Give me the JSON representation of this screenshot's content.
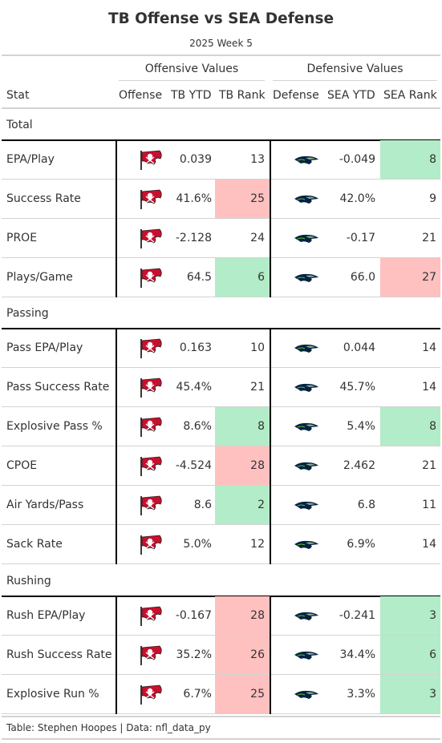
{
  "title": "TB Offense vs SEA Defense",
  "subtitle": "2025 Week 5",
  "spanners": {
    "offense": "Offensive Values",
    "defense": "Defensive Values"
  },
  "columns": {
    "stat": "Stat",
    "offense": "Offense",
    "tb_ytd": "TB YTD",
    "tb_rank": "TB Rank",
    "defense": "Defense",
    "sea_ytd": "SEA YTD",
    "sea_rank": "SEA Rank"
  },
  "colors": {
    "good": "#b3ecc8",
    "bad": "#ffc0c0",
    "bucs_red": "#c8102e",
    "bucs_pewter": "#3d3935",
    "seahawks_navy": "#002244",
    "seahawks_green": "#69be28",
    "seahawks_gray": "#a5acaf"
  },
  "icons": {
    "offense_logo": "buccaneers-flag-logo",
    "defense_logo": "seahawks-logo"
  },
  "chart_data": {
    "type": "table",
    "groups": [
      {
        "name": "Total",
        "rows": [
          {
            "stat": "EPA/Play",
            "tb_ytd": "0.039",
            "tb_rank": "13",
            "tb_color": "none",
            "sea_ytd": "-0.049",
            "sea_rank": "8",
            "sea_color": "good"
          },
          {
            "stat": "Success Rate",
            "tb_ytd": "41.6%",
            "tb_rank": "25",
            "tb_color": "bad",
            "sea_ytd": "42.0%",
            "sea_rank": "9",
            "sea_color": "none"
          },
          {
            "stat": "PROE",
            "tb_ytd": "-2.128",
            "tb_rank": "24",
            "tb_color": "none",
            "sea_ytd": "-0.17",
            "sea_rank": "21",
            "sea_color": "none"
          },
          {
            "stat": "Plays/Game",
            "tb_ytd": "64.5",
            "tb_rank": "6",
            "tb_color": "good",
            "sea_ytd": "66.0",
            "sea_rank": "27",
            "sea_color": "bad"
          }
        ]
      },
      {
        "name": "Passing",
        "rows": [
          {
            "stat": "Pass EPA/Play",
            "tb_ytd": "0.163",
            "tb_rank": "10",
            "tb_color": "none",
            "sea_ytd": "0.044",
            "sea_rank": "14",
            "sea_color": "none"
          },
          {
            "stat": "Pass Success Rate",
            "tb_ytd": "45.4%",
            "tb_rank": "21",
            "tb_color": "none",
            "sea_ytd": "45.7%",
            "sea_rank": "14",
            "sea_color": "none"
          },
          {
            "stat": "Explosive Pass %",
            "tb_ytd": "8.6%",
            "tb_rank": "8",
            "tb_color": "good",
            "sea_ytd": "5.4%",
            "sea_rank": "8",
            "sea_color": "good"
          },
          {
            "stat": "CPOE",
            "tb_ytd": "-4.524",
            "tb_rank": "28",
            "tb_color": "bad",
            "sea_ytd": "2.462",
            "sea_rank": "21",
            "sea_color": "none"
          },
          {
            "stat": "Air Yards/Pass",
            "tb_ytd": "8.6",
            "tb_rank": "2",
            "tb_color": "good",
            "sea_ytd": "6.8",
            "sea_rank": "11",
            "sea_color": "none"
          },
          {
            "stat": "Sack Rate",
            "tb_ytd": "5.0%",
            "tb_rank": "12",
            "tb_color": "none",
            "sea_ytd": "6.9%",
            "sea_rank": "14",
            "sea_color": "none"
          }
        ]
      },
      {
        "name": "Rushing",
        "rows": [
          {
            "stat": "Rush EPA/Play",
            "tb_ytd": "-0.167",
            "tb_rank": "28",
            "tb_color": "bad",
            "sea_ytd": "-0.241",
            "sea_rank": "3",
            "sea_color": "good"
          },
          {
            "stat": "Rush Success Rate",
            "tb_ytd": "35.2%",
            "tb_rank": "26",
            "tb_color": "bad",
            "sea_ytd": "34.4%",
            "sea_rank": "6",
            "sea_color": "good"
          },
          {
            "stat": "Explosive Run %",
            "tb_ytd": "6.7%",
            "tb_rank": "25",
            "tb_color": "bad",
            "sea_ytd": "3.3%",
            "sea_rank": "3",
            "sea_color": "good"
          }
        ]
      }
    ]
  },
  "source": "Table: Stephen Hoopes | Data: nfl_data_py"
}
